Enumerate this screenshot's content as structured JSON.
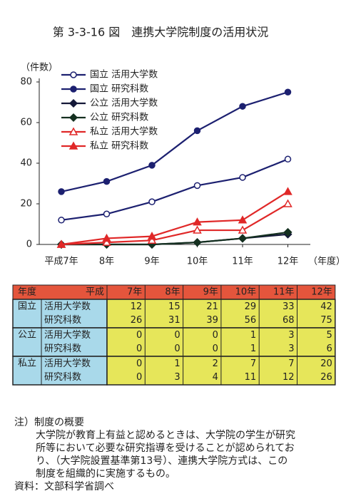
{
  "title": "第 3-3-16 図　連携大学院制度の活用状況",
  "chart_data": {
    "type": "line",
    "y_label": "（件数）",
    "x_label": "（年度）",
    "categories": [
      "平成7年",
      "8年",
      "9年",
      "10年",
      "11年",
      "12年"
    ],
    "ylim": [
      0,
      80
    ],
    "yticks": [
      0,
      20,
      40,
      60,
      80
    ],
    "series": [
      {
        "name": "国立 活用大学数",
        "color": "#1c2070",
        "marker": "circle",
        "filled": false,
        "values": [
          12,
          15,
          21,
          29,
          33,
          42
        ]
      },
      {
        "name": "国立 研究科数",
        "color": "#1c2070",
        "marker": "circle",
        "filled": true,
        "values": [
          26,
          31,
          39,
          56,
          68,
          75
        ]
      },
      {
        "name": "公立 活用大学数",
        "color": "#141838",
        "marker": "diamond",
        "filled": true,
        "values": [
          0,
          0,
          0,
          1,
          3,
          5
        ]
      },
      {
        "name": "公立 研究科数",
        "color": "#143020",
        "marker": "diamond",
        "filled": true,
        "values": [
          0,
          0,
          0,
          1,
          3,
          6
        ]
      },
      {
        "name": "私立 活用大学数",
        "color": "#e02828",
        "marker": "triangle",
        "filled": false,
        "values": [
          0,
          1,
          2,
          7,
          7,
          20
        ]
      },
      {
        "name": "私立 研究科数",
        "color": "#e02828",
        "marker": "triangle",
        "filled": true,
        "values": [
          0,
          3,
          4,
          11,
          12,
          26
        ]
      }
    ]
  },
  "table": {
    "header": [
      "年度",
      "平成",
      "7年",
      "8年",
      "9年",
      "10年",
      "11年",
      "12年"
    ],
    "groups": [
      {
        "name": "国立",
        "rows": [
          "活用大学数",
          "研究科数"
        ]
      },
      {
        "name": "公立",
        "rows": [
          "活用大学数",
          "研究科数"
        ]
      },
      {
        "name": "私立",
        "rows": [
          "活用大学数",
          "研究科数"
        ]
      }
    ]
  },
  "notes": {
    "heading": "注）制度の概要",
    "lines": [
      "大学院が教育上有益と認めるときは、大学院の学生が研究",
      "所等において必要な研究指導を受けることが認められてお",
      "り、（大学院設置基準第13号）、連携大学院方式は、この",
      "制度を組織的に実施するもの。"
    ],
    "source": "資料：文部科学省調べ"
  }
}
